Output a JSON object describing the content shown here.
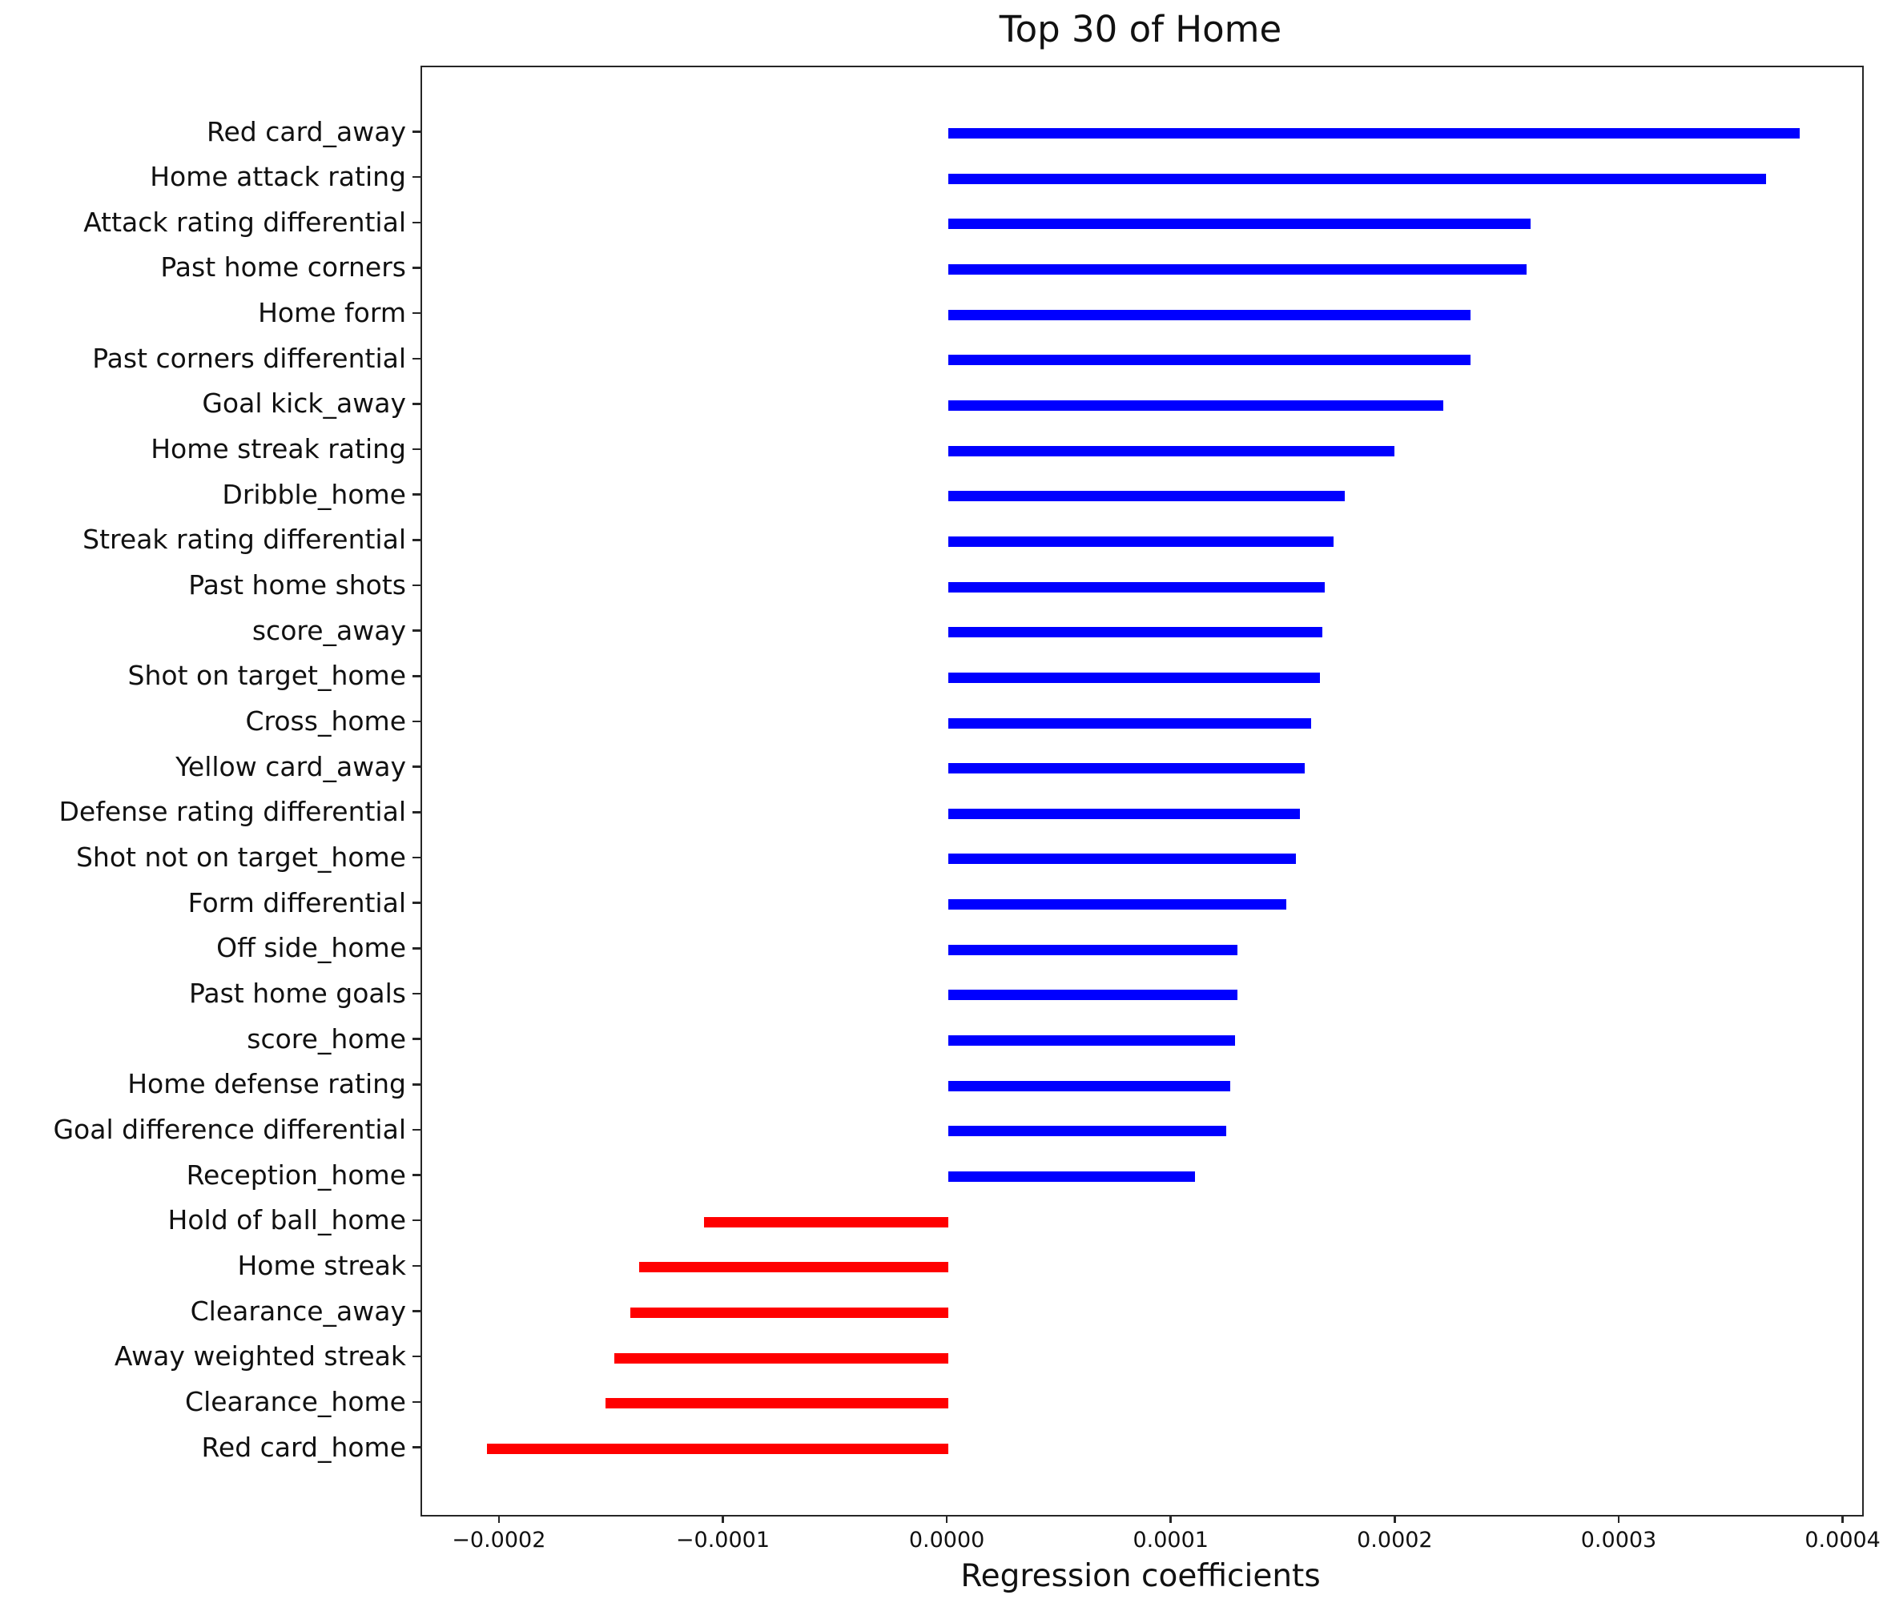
{
  "chart_data": {
    "type": "bar",
    "orientation": "horizontal",
    "title": "Top 30 of Home",
    "xlabel": "Regression coefficients",
    "categories": [
      "Red card_away",
      "Home attack rating",
      "Attack rating differential",
      "Past home corners",
      "Home form",
      "Past corners differential",
      "Goal kick_away",
      "Home streak rating",
      "Dribble_home",
      "Streak rating differential",
      "Past home shots",
      "score_away",
      "Shot on target_home",
      "Cross_home",
      "Yellow card_away",
      "Defense rating differential",
      "Shot not on target_home",
      "Form differential",
      "Off side_home",
      "Past home goals",
      "score_home",
      "Home defense rating",
      "Goal difference differential",
      "Reception_home",
      "Hold of ball_home",
      "Home streak",
      "Clearance_away",
      "Away weighted streak",
      "Clearance_home",
      "Red card_home"
    ],
    "values": [
      0.00038,
      0.000365,
      0.00026,
      0.000258,
      0.000233,
      0.000233,
      0.000221,
      0.000199,
      0.000177,
      0.000172,
      0.000168,
      0.000167,
      0.000166,
      0.000162,
      0.000159,
      0.000157,
      0.000155,
      0.000151,
      0.000129,
      0.000129,
      0.000128,
      0.000126,
      0.000124,
      0.00011,
      -0.000109,
      -0.000138,
      -0.000142,
      -0.000149,
      -0.000153,
      -0.000206
    ],
    "positive_color": "#0000ff",
    "negative_color": "#ff0000",
    "axis_color": "#262626",
    "text_color": "#111111",
    "xlim": [
      -0.000235,
      0.000408
    ],
    "xticks": [
      -0.0002,
      -0.0001,
      0.0,
      0.0001,
      0.0002,
      0.0003,
      0.0004
    ],
    "xtick_labels": [
      "−0.0002",
      "−0.0001",
      "0.0000",
      "0.0001",
      "0.0002",
      "0.0003",
      "0.0004"
    ],
    "grid": false,
    "legend": null,
    "bars_start_at": 0
  }
}
